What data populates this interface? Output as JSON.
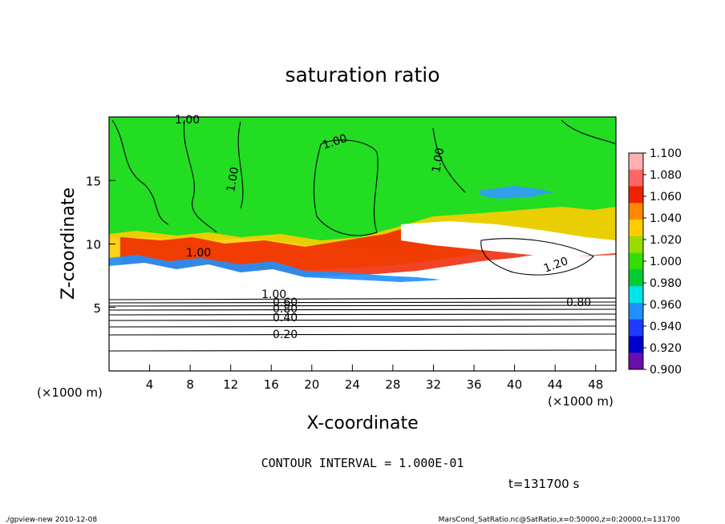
{
  "chart_data": {
    "type": "heatmap",
    "title": "saturation ratio",
    "xlabel": "X-coordinate",
    "ylabel": "Z-coordinate",
    "x_unit": "(×1000 m)",
    "z_unit": "(×1000 m)",
    "xlim": [
      0,
      50
    ],
    "ylim": [
      0,
      20
    ],
    "x_ticks": [
      4,
      8,
      12,
      16,
      20,
      24,
      28,
      32,
      36,
      40,
      44,
      48
    ],
    "y_ticks": [
      5,
      10,
      15
    ],
    "colorbar": {
      "ticks": [
        "0.900",
        "0.920",
        "0.940",
        "0.960",
        "0.980",
        "1.000",
        "1.020",
        "1.040",
        "1.060",
        "1.080",
        "1.100"
      ],
      "colors": [
        "#6a0dad",
        "#0000cd",
        "#1e3cff",
        "#1e90ff",
        "#00e5e5",
        "#00cc33",
        "#33dd00",
        "#99dd00",
        "#ffcc00",
        "#ff8800",
        "#ee2200",
        "#ff6666",
        "#ffb0b0"
      ]
    },
    "contour_labels": [
      "1.00",
      "1.00",
      "1.00",
      "1.00",
      "1.00",
      "1.20",
      "1.00",
      "0.60",
      "0.80",
      "0.40",
      "0.20",
      "0.80"
    ],
    "contour_interval_text": "CONTOUR INTERVAL = 1.000E-01",
    "time_text": "t=131700 s"
  },
  "footer": {
    "left": "./gpview-new  2010-12-08",
    "right": "MarsCond_SatRatio.nc@SatRatio,x=0:50000,z=0:20000,t=131700"
  },
  "labels": {
    "x_unit_left": "(×1000 m)",
    "x_unit_right": "(×1000 m)"
  }
}
